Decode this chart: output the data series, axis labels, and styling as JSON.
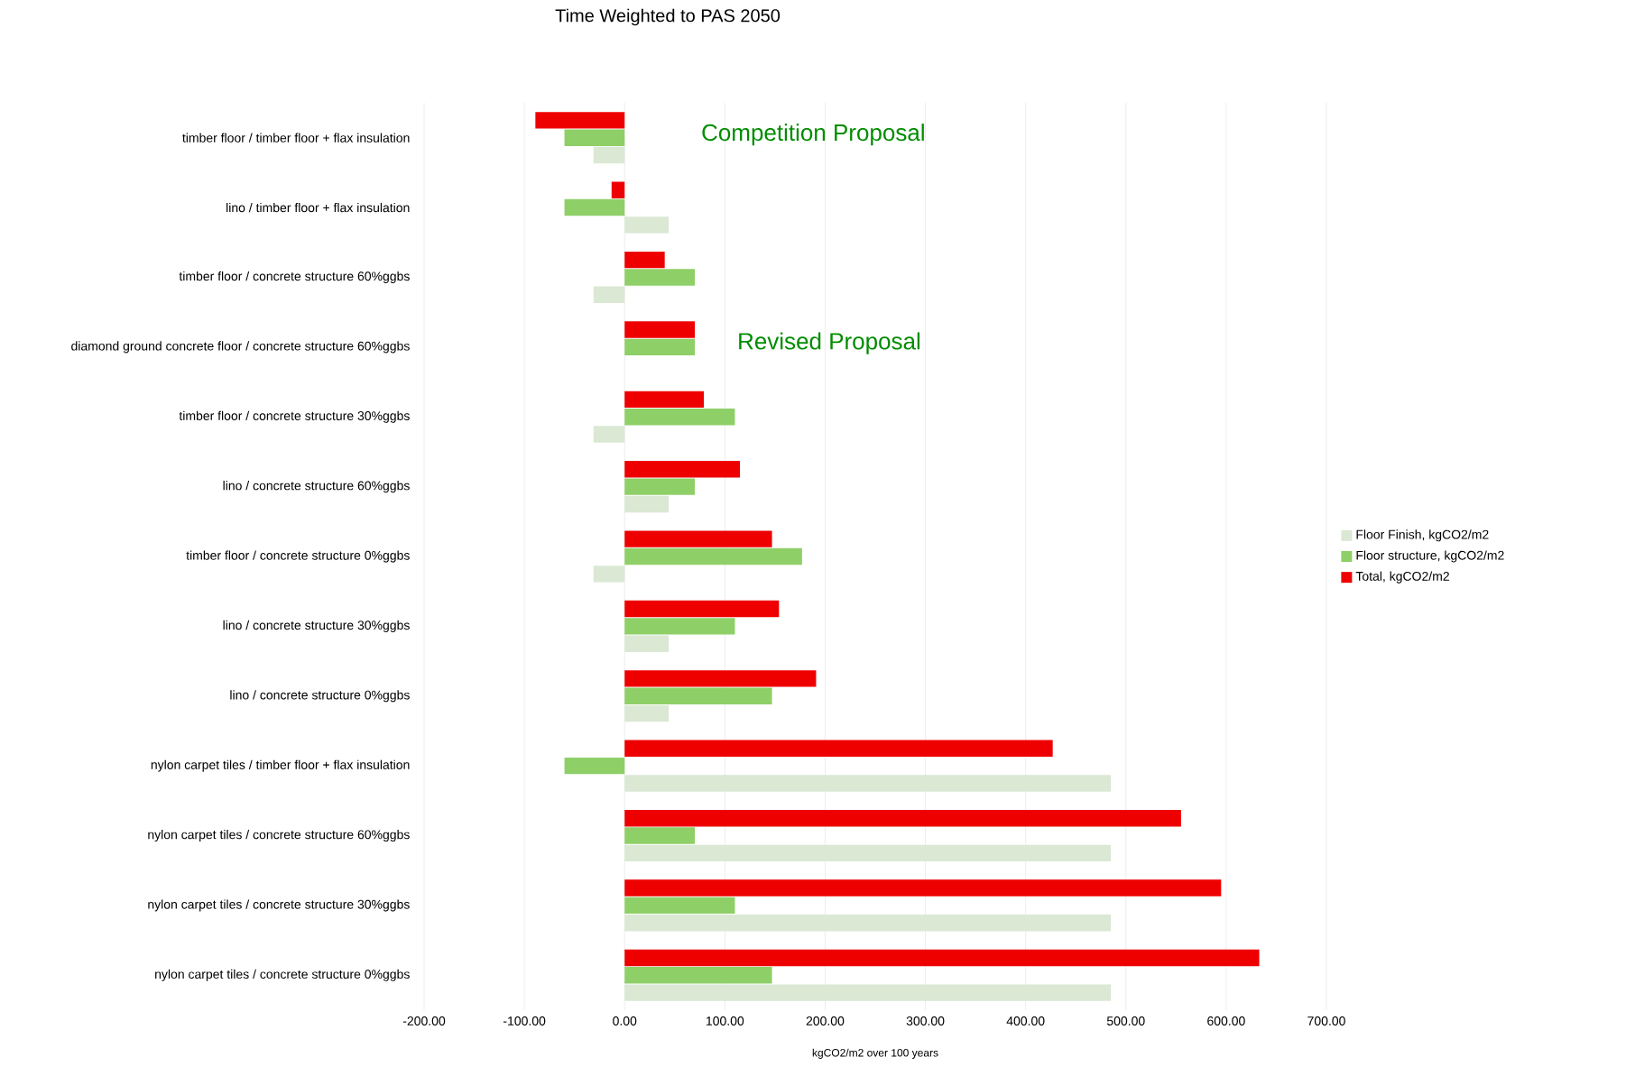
{
  "chart_data": {
    "type": "bar",
    "orientation": "horizontal",
    "title": "Time Weighted to PAS 2050",
    "xlabel": "kgCO2/m2 over 100 years",
    "categories": [
      "timber floor / timber floor + flax insulation",
      "lino / timber floor + flax insulation",
      "timber floor / concrete structure 60%ggbs",
      "diamond ground concrete floor / concrete structure 60%ggbs",
      "timber floor / concrete structure 30%ggbs",
      "lino / concrete structure 60%ggbs",
      "timber floor / concrete structure 0%ggbs",
      "lino / concrete structure 30%ggbs",
      "lino / concrete structure 0%ggbs",
      "nylon carpet tiles / timber floor + flax insulation",
      "nylon carpet tiles / concrete structure 60%ggbs",
      "nylon carpet tiles / concrete structure 30%ggbs",
      "nylon carpet tiles / concrete structure 0%ggbs"
    ],
    "series": [
      {
        "name": "Floor Finish, kgCO2/m2",
        "color": "#dae8d4",
        "values": [
          -31,
          44,
          -31,
          0,
          -31,
          44,
          -31,
          44,
          44,
          485,
          485,
          485,
          485
        ]
      },
      {
        "name": "Floor structure, kgCO2/m2",
        "color": "#8fcf68",
        "values": [
          -60,
          -60,
          70,
          70,
          110,
          70,
          177,
          110,
          147,
          -60,
          70,
          110,
          147
        ]
      },
      {
        "name": "Total, kgCO2/m2",
        "color": "#ee0000",
        "values": [
          -89,
          -13,
          40,
          70,
          79,
          115,
          147,
          154,
          191,
          427,
          555,
          595,
          633
        ]
      }
    ],
    "xlim": [
      -200,
      700
    ],
    "xticks": [
      {
        "value": -200,
        "label": "-200.00"
      },
      {
        "value": -100,
        "label": "-100.00"
      },
      {
        "value": 0,
        "label": "0.00"
      },
      {
        "value": 100,
        "label": "100.00"
      },
      {
        "value": 200,
        "label": "200.00"
      },
      {
        "value": 300,
        "label": "300.00"
      },
      {
        "value": 400,
        "label": "400.00"
      },
      {
        "value": 500,
        "label": "500.00"
      },
      {
        "value": 600,
        "label": "600.00"
      },
      {
        "value": 700,
        "label": "700.00"
      }
    ],
    "annotations": [
      "Competition Proposal",
      "Revised Proposal"
    ],
    "grid": "x",
    "legend": "right"
  }
}
